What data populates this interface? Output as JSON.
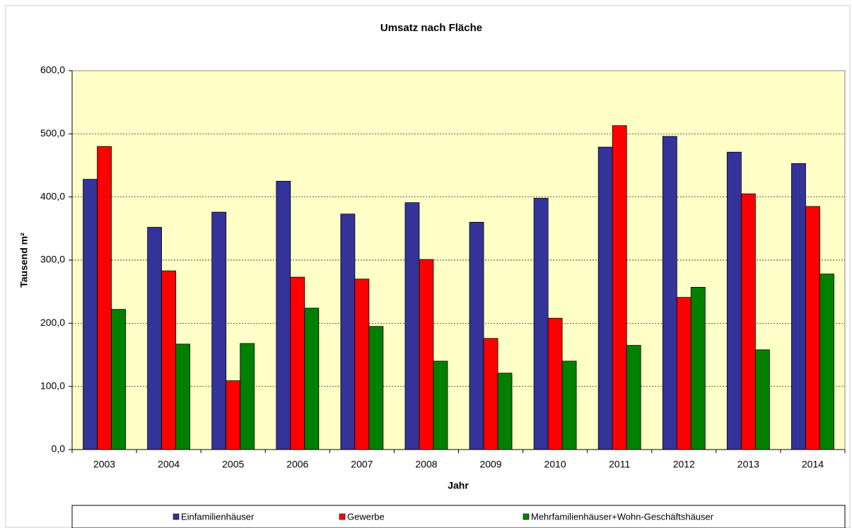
{
  "chart_data": {
    "type": "bar",
    "title": "Umsatz nach Fläche",
    "x_label": "Jahr",
    "y_label": "Tausend m²",
    "categories": [
      "2003",
      "2004",
      "2005",
      "2006",
      "2007",
      "2008",
      "2009",
      "2010",
      "2011",
      "2012",
      "2013",
      "2014"
    ],
    "series": [
      {
        "name": "Einfamilienhäuser",
        "color": "#333399",
        "values": [
          428,
          352,
          376,
          425,
          373,
          391,
          360,
          398,
          479,
          496,
          471,
          453
        ]
      },
      {
        "name": "Gewerbe",
        "color": "#ff0000",
        "values": [
          480,
          283,
          109,
          273,
          270,
          301,
          176,
          208,
          513,
          241,
          405,
          385
        ]
      },
      {
        "name": "Mehrfamilienhäuser+Wohn-Geschäftshäuser",
        "color": "#008000",
        "values": [
          222,
          167,
          168,
          224,
          195,
          140,
          121,
          140,
          165,
          257,
          158,
          278
        ]
      }
    ],
    "ylim": [
      0,
      600
    ],
    "yticks": [
      {
        "value": 0,
        "label": "0,0"
      },
      {
        "value": 100,
        "label": "100,0"
      },
      {
        "value": 200,
        "label": "200,0"
      },
      {
        "value": 300,
        "label": "300,0"
      },
      {
        "value": 400,
        "label": "400,0"
      },
      {
        "value": 500,
        "label": "500,0"
      },
      {
        "value": 600,
        "label": "600,0"
      }
    ],
    "grid": true,
    "legend": "bottom",
    "plot_background": "#ffffc8"
  }
}
